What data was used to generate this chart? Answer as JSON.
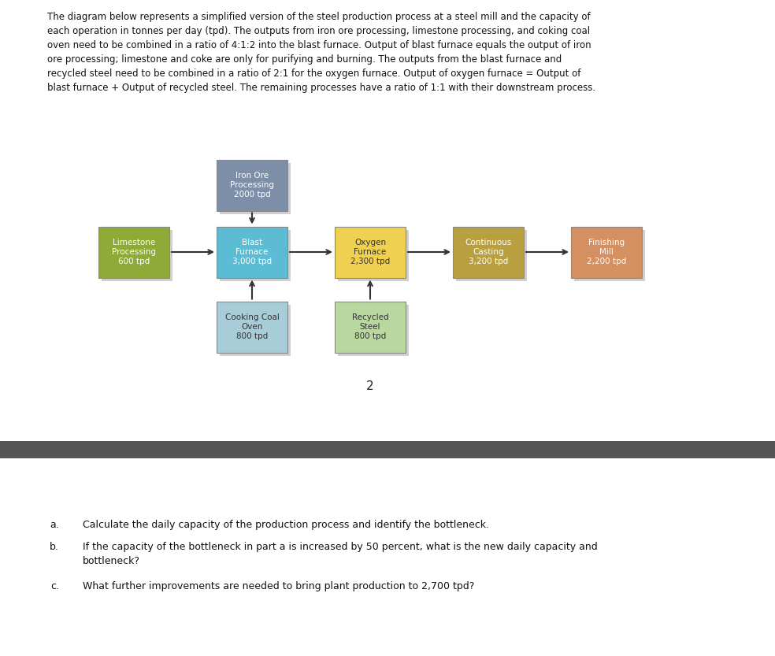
{
  "title_text": "The diagram below represents a simplified version of the steel production process at a steel mill and the capacity of\neach operation in tonnes per day (tpd). The outputs from iron ore processing, limestone processing, and coking coal\noven need to be combined in a ratio of 4:1:2 into the blast furnace. Output of blast furnace equals the output of iron\nore processing; limestone and coke are only for purifying and burning. The outputs from the blast furnace and\nrecycled steel need to be combined in a ratio of 2:1 for the oxygen furnace. Output of oxygen furnace = Output of\nblast furnace + Output of recycled steel. The remaining processes have a ratio of 1:1 with their downstream process.",
  "figure_number": "2",
  "q_labels": [
    "a.",
    "b.",
    "c."
  ],
  "q_texts": [
    "Calculate the daily capacity of the production process and identify the bottleneck.",
    "If the capacity of the bottleneck in part a is increased by 50 percent, what is the new daily capacity and\nbottleneck?",
    "What further improvements are needed to bring plant production to 2,700 tpd?"
  ],
  "boxes": [
    {
      "id": "iron_ore",
      "label": "Iron Ore\nProcessing\n2000 tpd",
      "col": 1,
      "row": 0,
      "color": "#7d8fa8",
      "text_color": "#ffffff"
    },
    {
      "id": "limestone",
      "label": "Limestone\nProcessing\n600 tpd",
      "col": 0,
      "row": 1,
      "color": "#8faa36",
      "text_color": "#ffffff"
    },
    {
      "id": "blast_furnace",
      "label": "Blast\nFurnace\n3,000 tpd",
      "col": 1,
      "row": 1,
      "color": "#5bbcd4",
      "text_color": "#ffffff"
    },
    {
      "id": "oxygen_furnace",
      "label": "Oxygen\nFurnace\n2,300 tpd",
      "col": 2,
      "row": 1,
      "color": "#f0d050",
      "text_color": "#333333"
    },
    {
      "id": "continuous_casting",
      "label": "Continuous\nCasting\n3,200 tpd",
      "col": 3,
      "row": 1,
      "color": "#b8a040",
      "text_color": "#ffffff"
    },
    {
      "id": "finishing_mill",
      "label": "Finishing\nMill\n2,200 tpd",
      "col": 4,
      "row": 1,
      "color": "#d49060",
      "text_color": "#ffffff"
    },
    {
      "id": "cooking_coal",
      "label": "Cooking Coal\nOven\n800 tpd",
      "col": 1,
      "row": 2,
      "color": "#a8ccd8",
      "text_color": "#333333"
    },
    {
      "id": "recycled_steel",
      "label": "Recycled\nSteel\n800 tpd",
      "col": 2,
      "row": 2,
      "color": "#b8d8a0",
      "text_color": "#333333"
    }
  ],
  "background_color": "#ffffff",
  "divider_color": "#555555",
  "shadow_color": "#aaaaaa",
  "arrow_color": "#333333"
}
